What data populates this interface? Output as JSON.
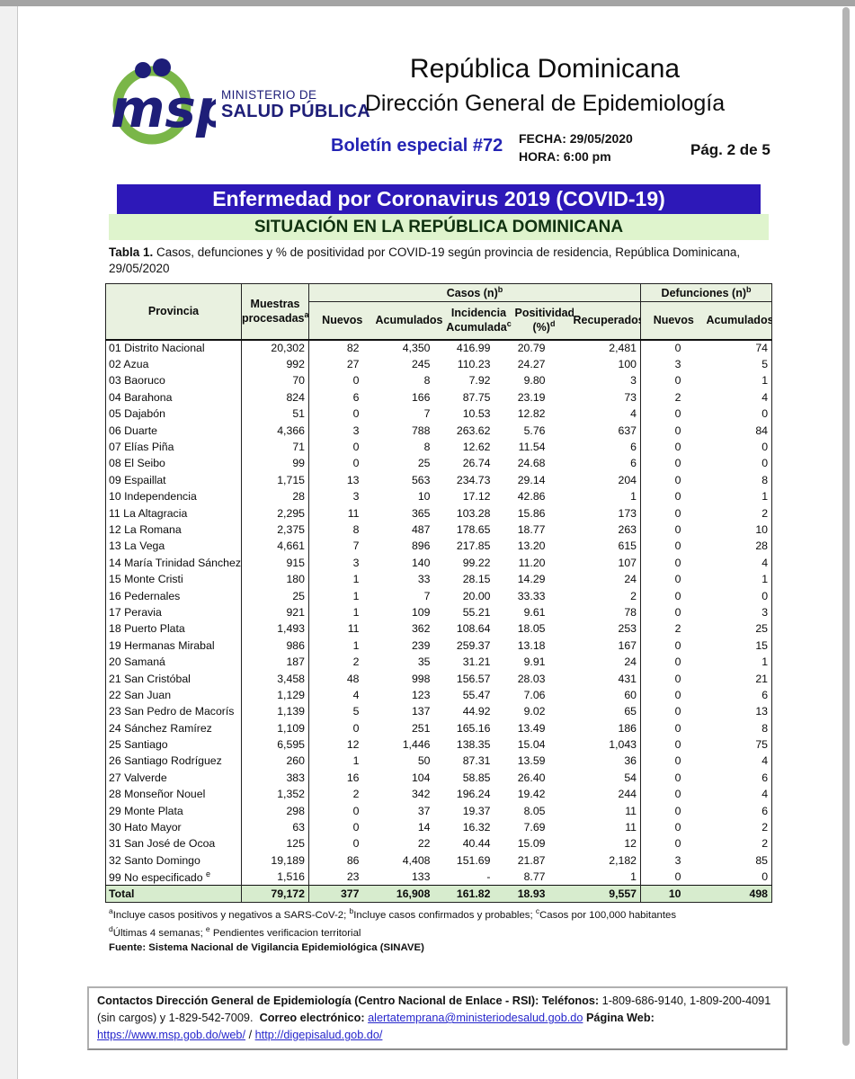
{
  "colors": {
    "banner_blue": "#2d18b8",
    "banner_green": "#dff4cd",
    "table_header_green": "#e9f1e0",
    "total_row_green": "#d7ecce",
    "brand_navy": "#1e1e78",
    "brand_green": "#7ab648",
    "bulletin_blue": "#2424b4",
    "link_blue": "#2626cc"
  },
  "header": {
    "logo_msp": "msp",
    "ministry_line1": "MINISTERIO DE",
    "ministry_line2": "SALUD PÚBLICA",
    "title1": "República Dominicana",
    "title2": "Dirección General de Epidemiología",
    "bulletin": "Boletín especial #72",
    "fecha": "FECHA: 29/05/2020",
    "hora": "HORA: 6:00 pm",
    "page": "Pág. 2 de 5"
  },
  "banner": {
    "title": "Enfermedad por Coronavirus 2019 (COVID-19)",
    "subtitle": "SITUACIÓN EN LA REPÚBLICA DOMINICANA"
  },
  "caption": {
    "label": "Tabla 1.",
    "text": " Casos, defunciones y % de positividad por COVID-19 según provincia de residencia, República Dominicana, 29/05/2020"
  },
  "table": {
    "headers": {
      "provincia": "Provincia",
      "muestras_l1": "Muestras",
      "muestras_l2": "procesadas",
      "muestras_sup": "a",
      "casos": "Casos (n)",
      "casos_sup": "b",
      "nuevos": "Nuevos",
      "acumulados": "Acumulados",
      "incidencia_l1": "Incidencia",
      "incidencia_l2": "Acumulada",
      "incidencia_sup": "c",
      "positividad_l1": "Positividad",
      "positividad_l2": "(%)",
      "positividad_sup": "d",
      "recuperados": "Recuperados",
      "defunciones": "Defunciones (n)",
      "defunciones_sup": "b",
      "def_nuevos": "Nuevos",
      "def_acumulados": "Acumulados"
    },
    "rows": [
      [
        "01 Distrito Nacional",
        "20,302",
        "82",
        "4,350",
        "416.99",
        "20.79",
        "2,481",
        "0",
        "74"
      ],
      [
        "02 Azua",
        "992",
        "27",
        "245",
        "110.23",
        "24.27",
        "100",
        "3",
        "5"
      ],
      [
        "03 Baoruco",
        "70",
        "0",
        "8",
        "7.92",
        "9.80",
        "3",
        "0",
        "1"
      ],
      [
        "04 Barahona",
        "824",
        "6",
        "166",
        "87.75",
        "23.19",
        "73",
        "2",
        "4"
      ],
      [
        "05 Dajabón",
        "51",
        "0",
        "7",
        "10.53",
        "12.82",
        "4",
        "0",
        "0"
      ],
      [
        "06 Duarte",
        "4,366",
        "3",
        "788",
        "263.62",
        "5.76",
        "637",
        "0",
        "84"
      ],
      [
        "07 Elías Piña",
        "71",
        "0",
        "8",
        "12.62",
        "11.54",
        "6",
        "0",
        "0"
      ],
      [
        "08 El Seibo",
        "99",
        "0",
        "25",
        "26.74",
        "24.68",
        "6",
        "0",
        "0"
      ],
      [
        "09 Espaillat",
        "1,715",
        "13",
        "563",
        "234.73",
        "29.14",
        "204",
        "0",
        "8"
      ],
      [
        "10 Independencia",
        "28",
        "3",
        "10",
        "17.12",
        "42.86",
        "1",
        "0",
        "1"
      ],
      [
        "11 La Altagracia",
        "2,295",
        "11",
        "365",
        "103.28",
        "15.86",
        "173",
        "0",
        "2"
      ],
      [
        "12 La Romana",
        "2,375",
        "8",
        "487",
        "178.65",
        "18.77",
        "263",
        "0",
        "10"
      ],
      [
        "13 La Vega",
        "4,661",
        "7",
        "896",
        "217.85",
        "13.20",
        "615",
        "0",
        "28"
      ],
      [
        "14 María Trinidad Sánchez",
        "915",
        "3",
        "140",
        "99.22",
        "11.20",
        "107",
        "0",
        "4"
      ],
      [
        "15 Monte Cristi",
        "180",
        "1",
        "33",
        "28.15",
        "14.29",
        "24",
        "0",
        "1"
      ],
      [
        "16 Pedernales",
        "25",
        "1",
        "7",
        "20.00",
        "33.33",
        "2",
        "0",
        "0"
      ],
      [
        "17 Peravia",
        "921",
        "1",
        "109",
        "55.21",
        "9.61",
        "78",
        "0",
        "3"
      ],
      [
        "18 Puerto Plata",
        "1,493",
        "11",
        "362",
        "108.64",
        "18.05",
        "253",
        "2",
        "25"
      ],
      [
        "19 Hermanas Mirabal",
        "986",
        "1",
        "239",
        "259.37",
        "13.18",
        "167",
        "0",
        "15"
      ],
      [
        "20 Samaná",
        "187",
        "2",
        "35",
        "31.21",
        "9.91",
        "24",
        "0",
        "1"
      ],
      [
        "21 San Cristóbal",
        "3,458",
        "48",
        "998",
        "156.57",
        "28.03",
        "431",
        "0",
        "21"
      ],
      [
        "22 San Juan",
        "1,129",
        "4",
        "123",
        "55.47",
        "7.06",
        "60",
        "0",
        "6"
      ],
      [
        "23 San Pedro de Macorís",
        "1,139",
        "5",
        "137",
        "44.92",
        "9.02",
        "65",
        "0",
        "13"
      ],
      [
        "24 Sánchez Ramírez",
        "1,109",
        "0",
        "251",
        "165.16",
        "13.49",
        "186",
        "0",
        "8"
      ],
      [
        "25 Santiago",
        "6,595",
        "12",
        "1,446",
        "138.35",
        "15.04",
        "1,043",
        "0",
        "75"
      ],
      [
        "26 Santiago Rodríguez",
        "260",
        "1",
        "50",
        "87.31",
        "13.59",
        "36",
        "0",
        "4"
      ],
      [
        "27 Valverde",
        "383",
        "16",
        "104",
        "58.85",
        "26.40",
        "54",
        "0",
        "6"
      ],
      [
        "28 Monseñor Nouel",
        "1,352",
        "2",
        "342",
        "196.24",
        "19.42",
        "244",
        "0",
        "4"
      ],
      [
        "29 Monte Plata",
        "298",
        "0",
        "37",
        "19.37",
        "8.05",
        "11",
        "0",
        "6"
      ],
      [
        "30 Hato Mayor",
        "63",
        "0",
        "14",
        "16.32",
        "7.69",
        "11",
        "0",
        "2"
      ],
      [
        "31 San José de Ocoa",
        "125",
        "0",
        "22",
        "40.44",
        "15.09",
        "12",
        "0",
        "2"
      ],
      [
        "32 Santo Domingo",
        "19,189",
        "86",
        "4,408",
        "151.69",
        "21.87",
        "2,182",
        "3",
        "85"
      ],
      [
        "99 No especificado ^e",
        "1,516",
        "23",
        "133",
        "-",
        "8.77",
        "1",
        "0",
        "0"
      ]
    ],
    "total": [
      "Total",
      "79,172",
      "377",
      "16,908",
      "161.82",
      "18.93",
      "9,557",
      "10",
      "498"
    ]
  },
  "footnotes": {
    "a_sup": "a",
    "a_text": "Incluye casos positivos y negativos a SARS-CoV-2; ",
    "b_sup": "b",
    "b_text": "Incluye casos confirmados y probables; ",
    "c_sup": "c",
    "c_text": "Casos por 100,000 habitantes",
    "d_sup": "d",
    "d_text": "Últimas 4 semanas; ",
    "e_sup": "e",
    "e_text": " Pendientes verificacion territorial",
    "source": "Fuente: Sistema Nacional de Vigilancia Epidemiológica (SINAVE)"
  },
  "contact": {
    "label": "Contactos Dirección General de Epidemiología (Centro Nacional de Enlace - RSI):",
    "phones_label": "Teléfonos:",
    "phones": "1-809-686-9140, 1-809-200-4091 (sin cargos) y 1-829-542-7009.",
    "email_label": "Correo electrónico:",
    "email": "alertatemprana@ministeriodesalud.gob.do",
    "web_label": "Página Web:",
    "web1": "https://www.msp.gob.do/web/",
    "web_sep": "/",
    "web2": "http://digepisalud.gob.do/"
  }
}
